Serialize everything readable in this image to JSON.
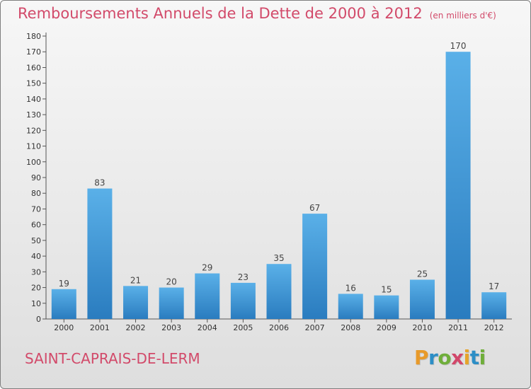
{
  "title": "Remboursements Annuels de la Dette de 2000 à 2012",
  "unit_note": "(en milliers d'€)",
  "commune": "SAINT-CAPRAIS-DE-LERM",
  "brand": {
    "text": "Proxiti",
    "letter_colors": [
      "#e89a2a",
      "#2c8ec6",
      "#6fae3a",
      "#d2476a",
      "#e6a42a",
      "#2c8ec6",
      "#6fae3a"
    ]
  },
  "colors": {
    "title": "#d24a6a",
    "bar_top": "#5ab0e8",
    "bar_bottom": "#2a7cbf",
    "axis": "#555555"
  },
  "chart_data": {
    "type": "bar",
    "categories": [
      "2000",
      "2001",
      "2002",
      "2003",
      "2004",
      "2005",
      "2006",
      "2007",
      "2008",
      "2009",
      "2010",
      "2011",
      "2012"
    ],
    "values": [
      19,
      83,
      21,
      20,
      29,
      23,
      35,
      67,
      16,
      15,
      25,
      170,
      17
    ],
    "ylim": [
      0,
      180
    ],
    "yticks": [
      0,
      10,
      20,
      30,
      40,
      50,
      60,
      70,
      80,
      90,
      100,
      110,
      120,
      130,
      140,
      150,
      160,
      170,
      180
    ],
    "grid": false,
    "data_labels": true
  }
}
